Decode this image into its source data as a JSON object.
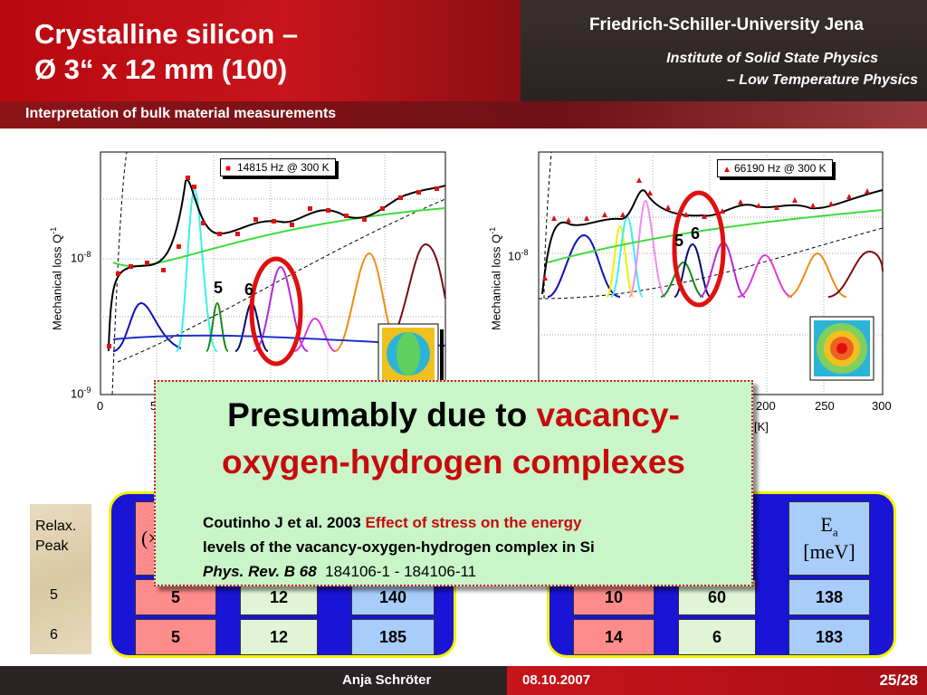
{
  "header": {
    "title_line1": "Crystalline silicon –",
    "title_line2": "Ø 3“ x 12 mm (100)",
    "university": "Friedrich-Schiller-University Jena",
    "institute_line1": "Institute of Solid State Physics",
    "institute_line2": "– Low Temperature Physics",
    "subtitle": "Interpretation of bulk material measurements"
  },
  "left_plot": {
    "ylabel": "Mechanical loss Q",
    "ylabel_sup": "-1",
    "ytick_top": "10",
    "ytick_top_sup": "-8",
    "ytick_bottom": "10",
    "ytick_bottom_sup": "-9",
    "xtick_0": "0",
    "xtick_1": "5",
    "legend": "14815 Hz @ 300 K",
    "peak5": "5",
    "peak6": "6"
  },
  "right_plot": {
    "ylabel": "Mechanical loss Q",
    "ylabel_sup": "-1",
    "ytick": "10",
    "ytick_sup": "-8",
    "xticks": [
      "200",
      "250",
      "300"
    ],
    "xlabel_fragment": "[K]",
    "legend": "66190 Hz @ 300 K",
    "peak5": "5",
    "peak6": "6"
  },
  "relax": {
    "label_line1": "Relax.",
    "label_line2": "Peak",
    "rows": [
      "5",
      "6"
    ]
  },
  "left_table": {
    "header_fragment": "(×",
    "rows": [
      {
        "a": "5",
        "b": "12",
        "c": "140"
      },
      {
        "a": "5",
        "b": "12",
        "c": "185"
      }
    ]
  },
  "right_table": {
    "header_ea": "E",
    "header_ea_sub": "a",
    "header_unit": "[meV]",
    "rows": [
      {
        "a": "10",
        "b": "60",
        "c": "138"
      },
      {
        "a": "14",
        "b": "6",
        "c": "183"
      }
    ]
  },
  "callout": {
    "line1_black": "Presumably due to ",
    "line1_red": "vacancy-",
    "line2_red": "oxygen-hydrogen complexes",
    "ref1_black": "Coutinho J et al. 2003 ",
    "ref1_red": "Effect of stress on the energy",
    "ref2_red": "levels of the vacancy-oxygen-hydrogen complex in Si",
    "ref3_italic": "Phys. Rev. B 68",
    "ref3_rest": "184106-1 - 184106-11"
  },
  "footer": {
    "author": "Anja Schröter",
    "date": "08.10.2007",
    "page": "25/28"
  },
  "colors": {
    "header_red": "#c8141b",
    "dark": "#2c2424",
    "callout_bg": "#c9f5c9",
    "accent_red": "#c80a0a",
    "table_blue": "#1a14d6"
  }
}
